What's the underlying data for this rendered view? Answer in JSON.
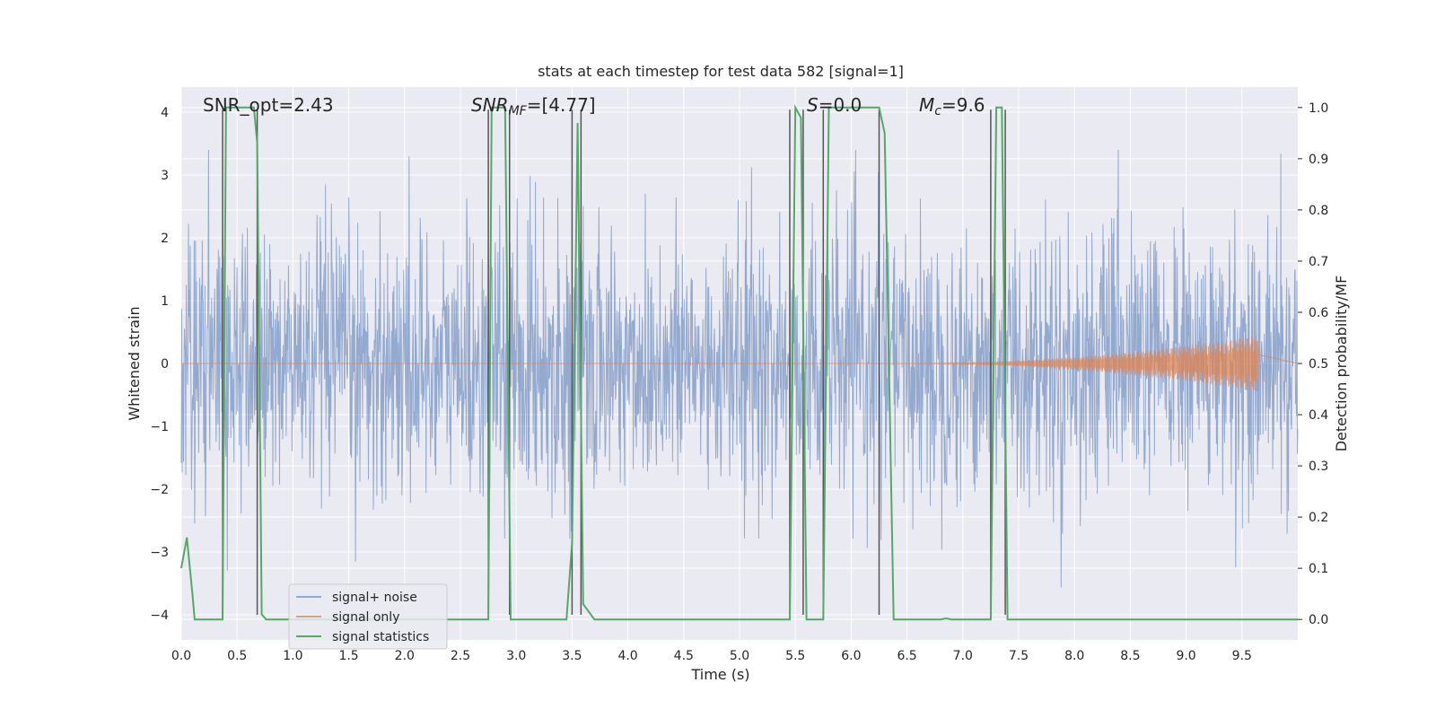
{
  "chart_data": {
    "type": "line",
    "title": "stats at each timestep for test data 582 [signal=1]",
    "xlabel": "Time (s)",
    "ylabel": "Whitened strain",
    "ylabel_right": "Detection probability/MF",
    "xlim": [
      0,
      10
    ],
    "ylim": [
      -4.4,
      4.4
    ],
    "ylim_right": [
      -0.04,
      1.04
    ],
    "x_ticks": [
      "0.0",
      "0.5",
      "1.0",
      "1.5",
      "2.0",
      "2.5",
      "3.0",
      "3.5",
      "4.0",
      "4.5",
      "5.0",
      "5.5",
      "6.0",
      "6.5",
      "7.0",
      "7.5",
      "8.0",
      "8.5",
      "9.0",
      "9.5"
    ],
    "y_ticks": [
      "−4",
      "−3",
      "−2",
      "−1",
      "0",
      "1",
      "2",
      "3",
      "4"
    ],
    "y_ticks_right": [
      "0.0",
      "0.1",
      "0.2",
      "0.3",
      "0.4",
      "0.5",
      "0.6",
      "0.7",
      "0.8",
      "0.9",
      "1.0"
    ],
    "grid": true,
    "legend_position": "lower-left",
    "annotations": {
      "snr_opt": "SNR_opt=2.43",
      "snr_mf_prefix": "SNR",
      "snr_mf_sub": "MF",
      "snr_mf_value": "=[4.77]",
      "s_var": "S",
      "s_value": "=0.0",
      "mc_var": "M",
      "mc_sub": "c",
      "mc_value": "=9.6"
    },
    "series": [
      {
        "name": "signal+ noise",
        "color": "#4c72b0",
        "description_level": "whitened noise, roughly within ±2, peaks to ±3.4"
      },
      {
        "name": "signal only",
        "color": "#dd8452",
        "chirp": {
          "start": 6.3,
          "end": 9.65,
          "peak_amplitude": 0.45
        }
      },
      {
        "name": "signal statistics",
        "color": "#55a868",
        "x": [
          0.0,
          0.05,
          0.1,
          0.12,
          0.37,
          0.4,
          0.43,
          0.65,
          0.68,
          0.72,
          0.76,
          0.8,
          2.75,
          2.78,
          2.82,
          2.9,
          2.95,
          3.45,
          3.5,
          3.55,
          3.6,
          3.7,
          5.45,
          5.5,
          5.55,
          5.6,
          5.75,
          5.8,
          6.25,
          6.3,
          6.38,
          6.8,
          6.85,
          6.9,
          7.25,
          7.3,
          7.35,
          7.4,
          10.0
        ],
        "y": [
          0.1,
          0.16,
          0.05,
          0.0,
          0.0,
          1.0,
          1.0,
          1.0,
          0.93,
          0.01,
          0.0,
          0.0,
          0.0,
          1.0,
          1.0,
          1.0,
          0.0,
          0.0,
          0.15,
          0.97,
          0.03,
          0.0,
          0.0,
          1.0,
          0.98,
          0.0,
          0.0,
          1.0,
          1.0,
          0.95,
          0.0,
          0.0,
          0.002,
          0.0,
          0.0,
          1.0,
          1.0,
          0.0,
          0.0
        ]
      }
    ],
    "vlines": [
      0.37,
      0.68,
      2.75,
      2.94,
      3.5,
      3.58,
      5.45,
      5.57,
      5.75,
      6.25,
      7.25,
      7.38
    ]
  }
}
